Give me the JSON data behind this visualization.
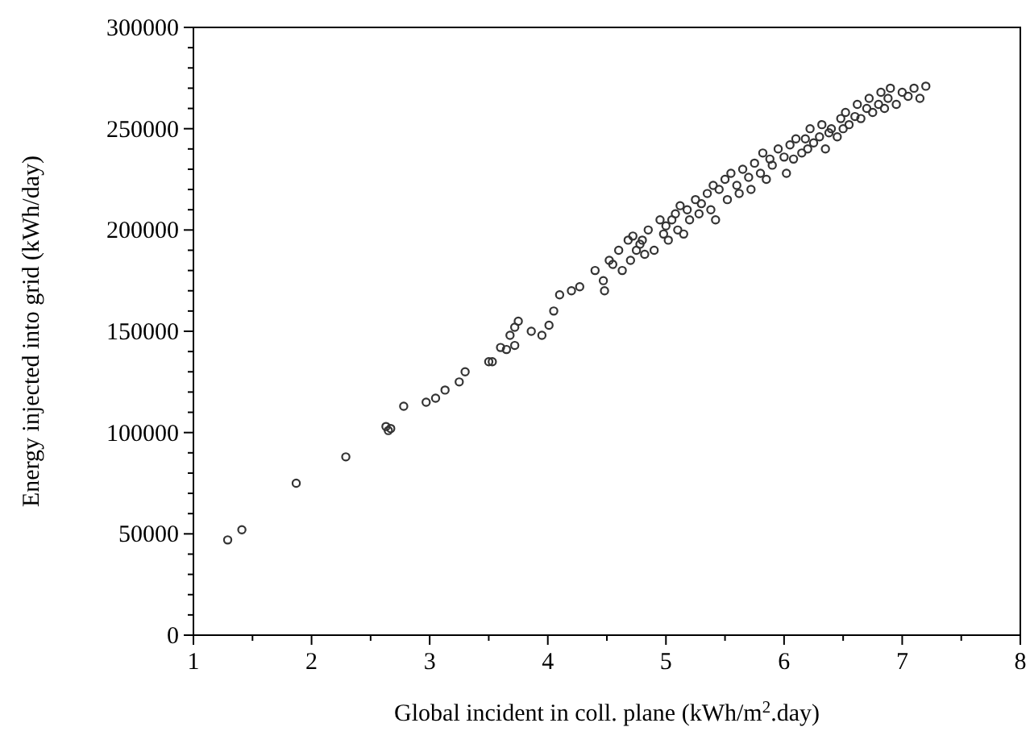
{
  "chart_data": {
    "type": "scatter",
    "xlabel": "Global incident in coll. plane (kWh/m$^{2}$.day)",
    "ylabel": "Energy injected into grid (kWh/day)",
    "xlim": [
      1,
      8
    ],
    "ylim": [
      0,
      300000
    ],
    "xticks": [
      1,
      {
        "value": 1.5,
        "label": null
      },
      2,
      {
        "value": 2.5,
        "label": null
      },
      3,
      {
        "value": 3.5,
        "label": null
      },
      4,
      {
        "value": 4.5,
        "label": null
      },
      5,
      {
        "value": 5.5,
        "label": null
      },
      6,
      {
        "value": 6.5,
        "label": null
      },
      7,
      {
        "value": 7.5,
        "label": null
      },
      8
    ],
    "yticks": [
      0,
      {
        "value": 10000,
        "label": null
      },
      {
        "value": 20000,
        "label": null
      },
      {
        "value": 30000,
        "label": null
      },
      {
        "value": 40000,
        "label": null
      },
      50000,
      {
        "value": 60000,
        "label": null
      },
      {
        "value": 70000,
        "label": null
      },
      {
        "value": 80000,
        "label": null
      },
      {
        "value": 90000,
        "label": null
      },
      100000,
      {
        "value": 110000,
        "label": null
      },
      {
        "value": 120000,
        "label": null
      },
      {
        "value": 130000,
        "label": null
      },
      {
        "value": 140000,
        "label": null
      },
      150000,
      {
        "value": 160000,
        "label": null
      },
      {
        "value": 170000,
        "label": null
      },
      {
        "value": 180000,
        "label": null
      },
      {
        "value": 190000,
        "label": null
      },
      200000,
      {
        "value": 210000,
        "label": null
      },
      {
        "value": 220000,
        "label": null
      },
      {
        "value": 230000,
        "label": null
      },
      {
        "value": 240000,
        "label": null
      },
      250000,
      {
        "value": 260000,
        "label": null
      },
      {
        "value": 270000,
        "label": null
      },
      {
        "value": 280000,
        "label": null
      },
      {
        "value": 290000,
        "label": null
      },
      300000
    ],
    "grid": false,
    "marker": "circle",
    "series": [
      {
        "color": "#333333",
        "x": [
          1.29,
          1.41,
          1.87,
          2.29,
          2.63,
          2.65,
          2.67,
          2.78,
          2.97,
          3.05,
          3.13,
          3.25,
          3.3,
          3.5,
          3.53,
          3.6,
          3.65,
          3.68,
          3.72,
          3.75,
          3.72,
          3.86,
          3.95,
          4.01,
          4.05,
          4.1,
          4.2,
          4.27,
          4.4,
          4.47,
          4.48,
          4.52,
          4.55,
          4.6,
          4.63,
          4.68,
          4.7,
          4.72,
          4.75,
          4.78,
          4.8,
          4.82,
          4.85,
          4.9,
          4.95,
          4.98,
          5.0,
          5.02,
          5.05,
          5.08,
          5.1,
          5.12,
          5.15,
          5.18,
          5.2,
          5.25,
          5.28,
          5.3,
          5.35,
          5.38,
          5.4,
          5.42,
          5.45,
          5.5,
          5.52,
          5.55,
          5.6,
          5.62,
          5.65,
          5.7,
          5.72,
          5.75,
          5.8,
          5.82,
          5.85,
          5.88,
          5.9,
          5.95,
          6.0,
          6.02,
          6.05,
          6.08,
          6.1,
          6.15,
          6.18,
          6.2,
          6.22,
          6.25,
          6.3,
          6.32,
          6.35,
          6.38,
          6.4,
          6.45,
          6.48,
          6.5,
          6.52,
          6.55,
          6.6,
          6.62,
          6.65,
          6.7,
          6.72,
          6.75,
          6.8,
          6.82,
          6.85,
          6.88,
          6.9,
          6.95,
          7.0,
          7.05,
          7.1,
          7.15,
          7.2
        ],
        "values": [
          47000,
          52000,
          75000,
          88000,
          103000,
          101000,
          102000,
          113000,
          115000,
          117000,
          121000,
          125000,
          130000,
          135000,
          135000,
          142000,
          141000,
          148000,
          152000,
          155000,
          143000,
          150000,
          148000,
          153000,
          160000,
          168000,
          170000,
          172000,
          180000,
          175000,
          170000,
          185000,
          183000,
          190000,
          180000,
          195000,
          185000,
          197000,
          190000,
          193000,
          195000,
          188000,
          200000,
          190000,
          205000,
          198000,
          202000,
          195000,
          205000,
          208000,
          200000,
          212000,
          198000,
          210000,
          205000,
          215000,
          208000,
          213000,
          218000,
          210000,
          222000,
          205000,
          220000,
          225000,
          215000,
          228000,
          222000,
          218000,
          230000,
          226000,
          220000,
          233000,
          228000,
          238000,
          225000,
          235000,
          232000,
          240000,
          236000,
          228000,
          242000,
          235000,
          245000,
          238000,
          245000,
          240000,
          250000,
          243000,
          246000,
          252000,
          240000,
          248000,
          250000,
          246000,
          255000,
          250000,
          258000,
          252000,
          256000,
          262000,
          255000,
          260000,
          265000,
          258000,
          262000,
          268000,
          260000,
          265000,
          270000,
          262000,
          268000,
          266000,
          270000,
          265000,
          271000
        ]
      }
    ]
  }
}
